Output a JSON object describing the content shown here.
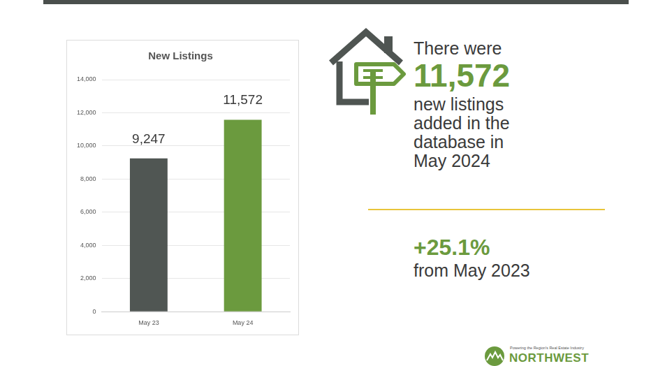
{
  "chart_data": {
    "type": "bar",
    "title": "New Listings",
    "categories": [
      "May 23",
      "May 24"
    ],
    "values": [
      9247,
      11572
    ],
    "value_labels": [
      "9,247",
      "11,572"
    ],
    "colors": [
      "#505653",
      "#6b9a3e"
    ],
    "ylim": [
      0,
      14000
    ],
    "yticks": [
      0,
      {
        "value": 2000,
        "label": "2,000"
      },
      {
        "value": 4000,
        "label": "4,000"
      },
      {
        "value": 6000,
        "label": "6,000"
      },
      {
        "value": 8000,
        "label": "8,000"
      },
      {
        "value": 10000,
        "label": "10,000"
      },
      {
        "value": 12000,
        "label": "12,000"
      },
      {
        "value": 14000,
        "label": "14,000"
      }
    ],
    "grid": true,
    "data_labels": true
  },
  "infographic": {
    "intro": "There were",
    "headline_number": "11,572",
    "description": "new listings added in the database in May 2024",
    "change": "+25.1%",
    "change_note": "from May 2023"
  },
  "logo": {
    "tagline": "Powering the Region's Real Estate Industry",
    "name": "NORTHWEST"
  }
}
